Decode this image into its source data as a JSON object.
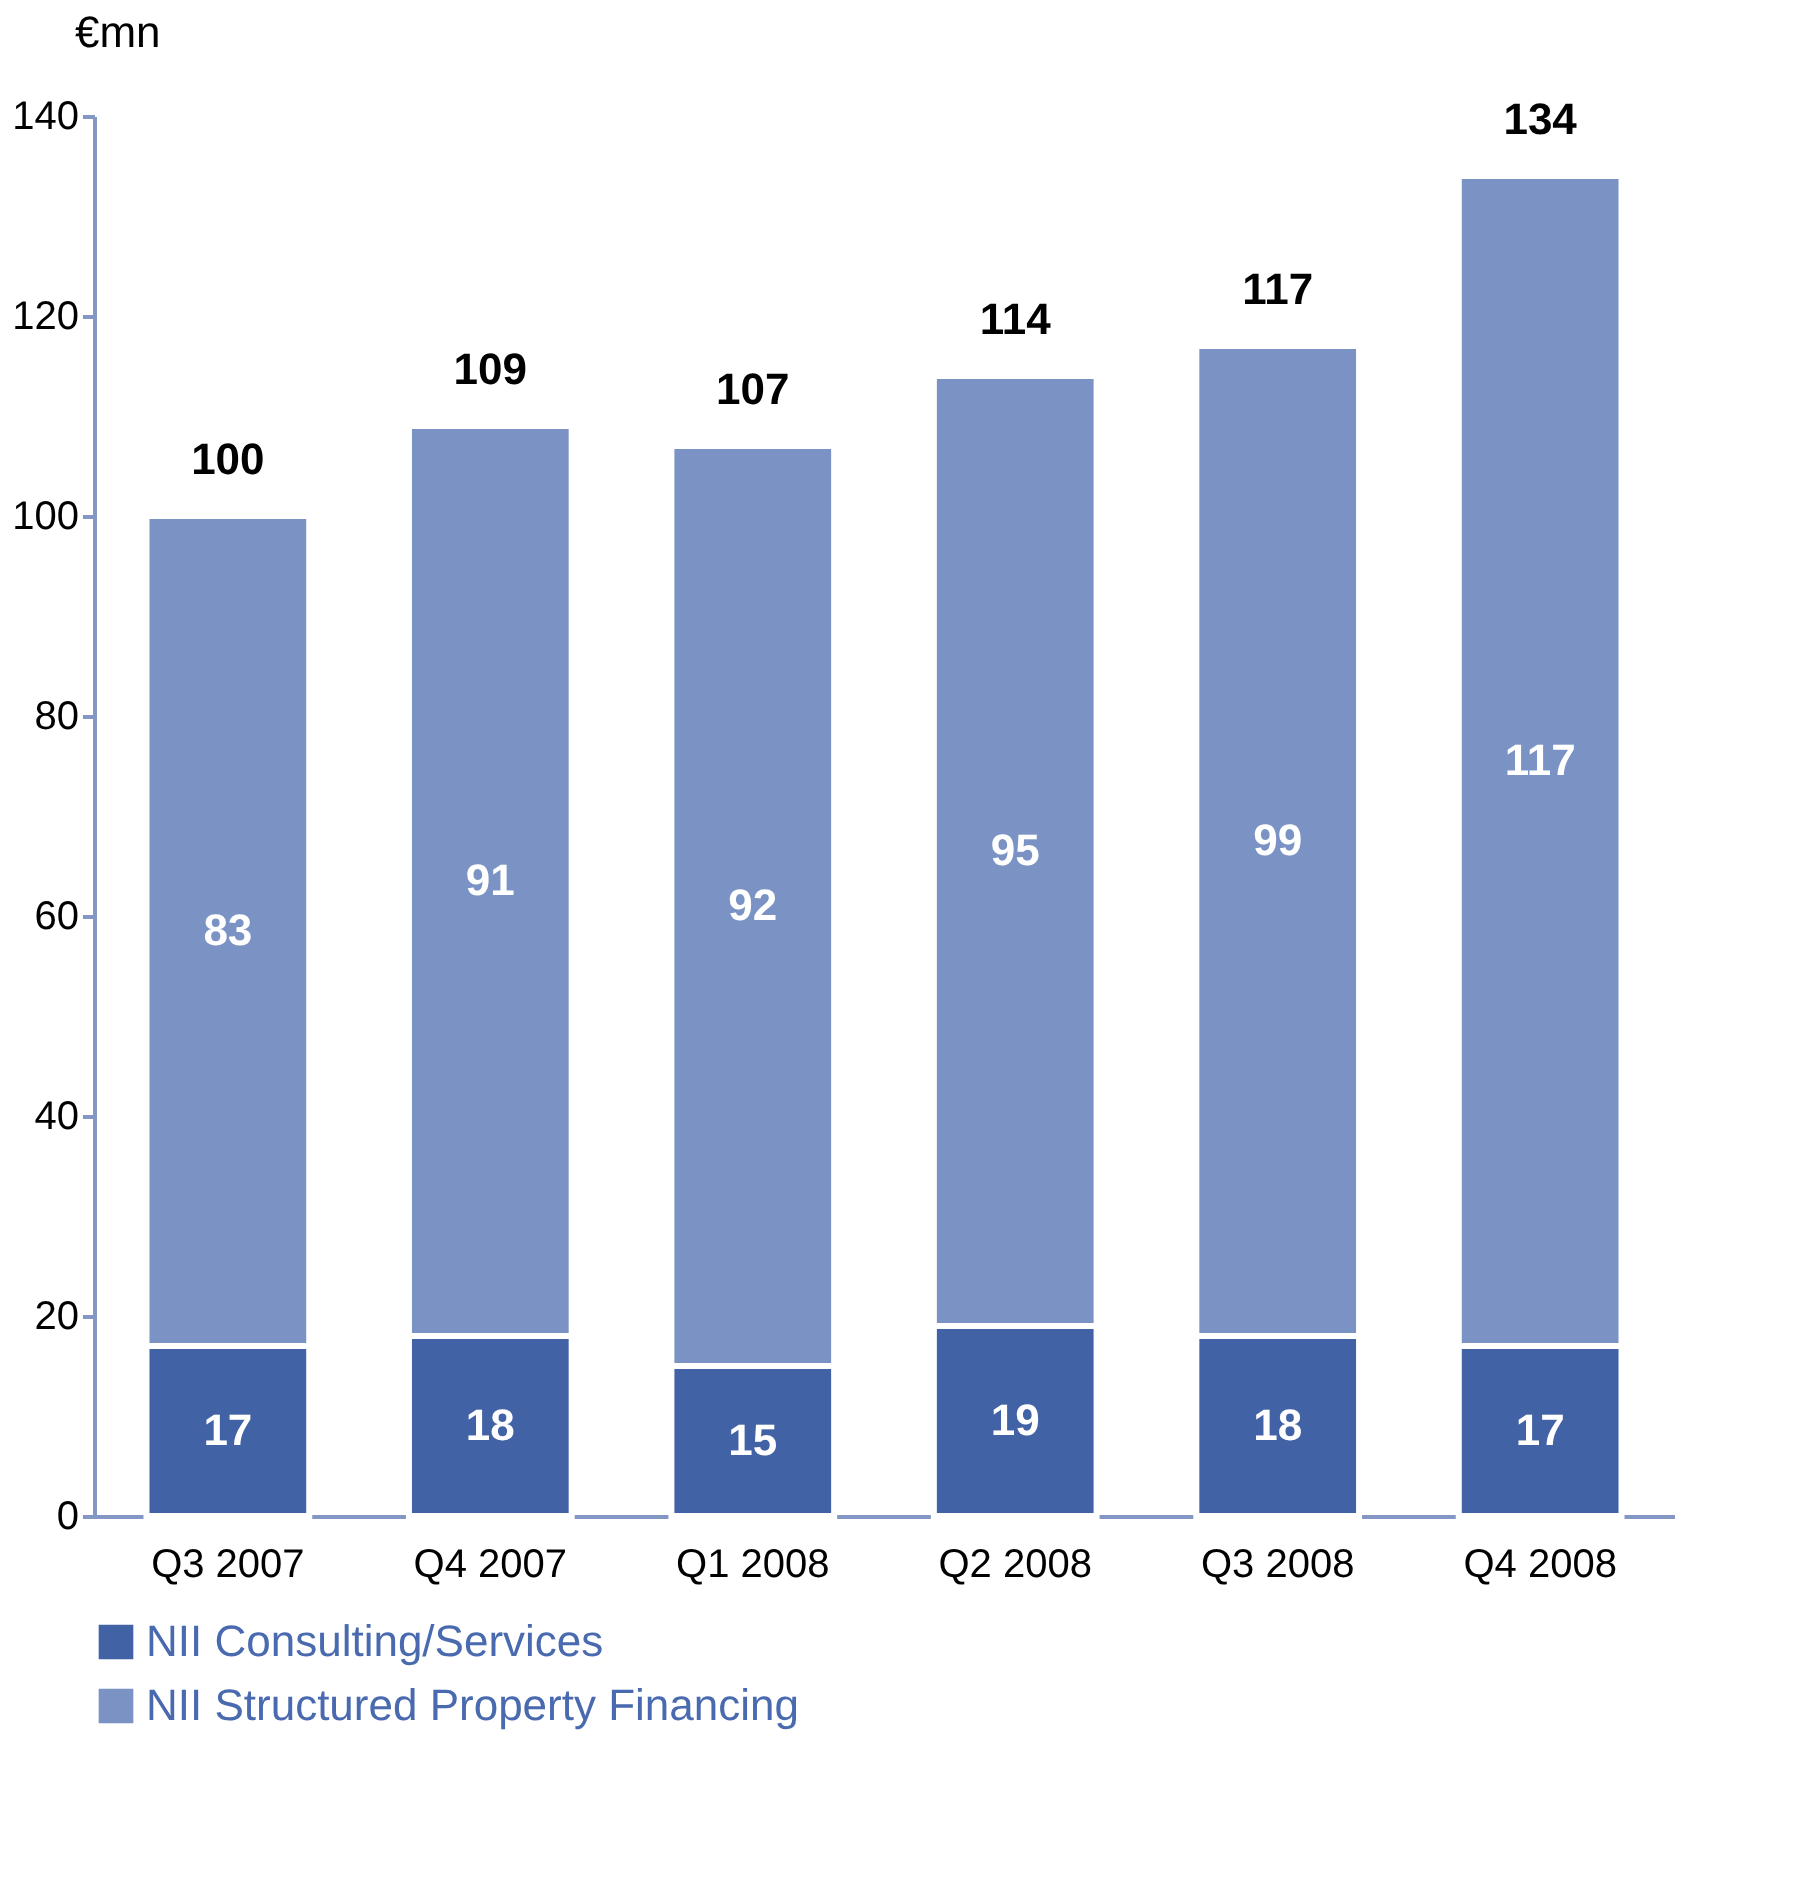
{
  "chart_data": {
    "type": "bar",
    "stacked": true,
    "ylabel": "€mn",
    "categories": [
      "Q3 2007",
      "Q4 2007",
      "Q1 2008",
      "Q2 2008",
      "Q3 2008",
      "Q4 2008"
    ],
    "series": [
      {
        "name": "NII Consulting/Services",
        "color": "#4262a6",
        "values": [
          17,
          18,
          15,
          19,
          18,
          17
        ]
      },
      {
        "name": "NII Structured Property Financing",
        "color": "#7a93c4",
        "values": [
          83,
          91,
          92,
          95,
          99,
          117
        ]
      }
    ],
    "totals": [
      "100",
      "109",
      "107",
      "114",
      "117",
      "134"
    ],
    "data_labels": true,
    "ylim": [
      0,
      140
    ],
    "yticks": [
      0,
      20,
      40,
      60,
      80,
      100,
      120,
      140
    ],
    "grid": false,
    "legend": "bottom"
  }
}
